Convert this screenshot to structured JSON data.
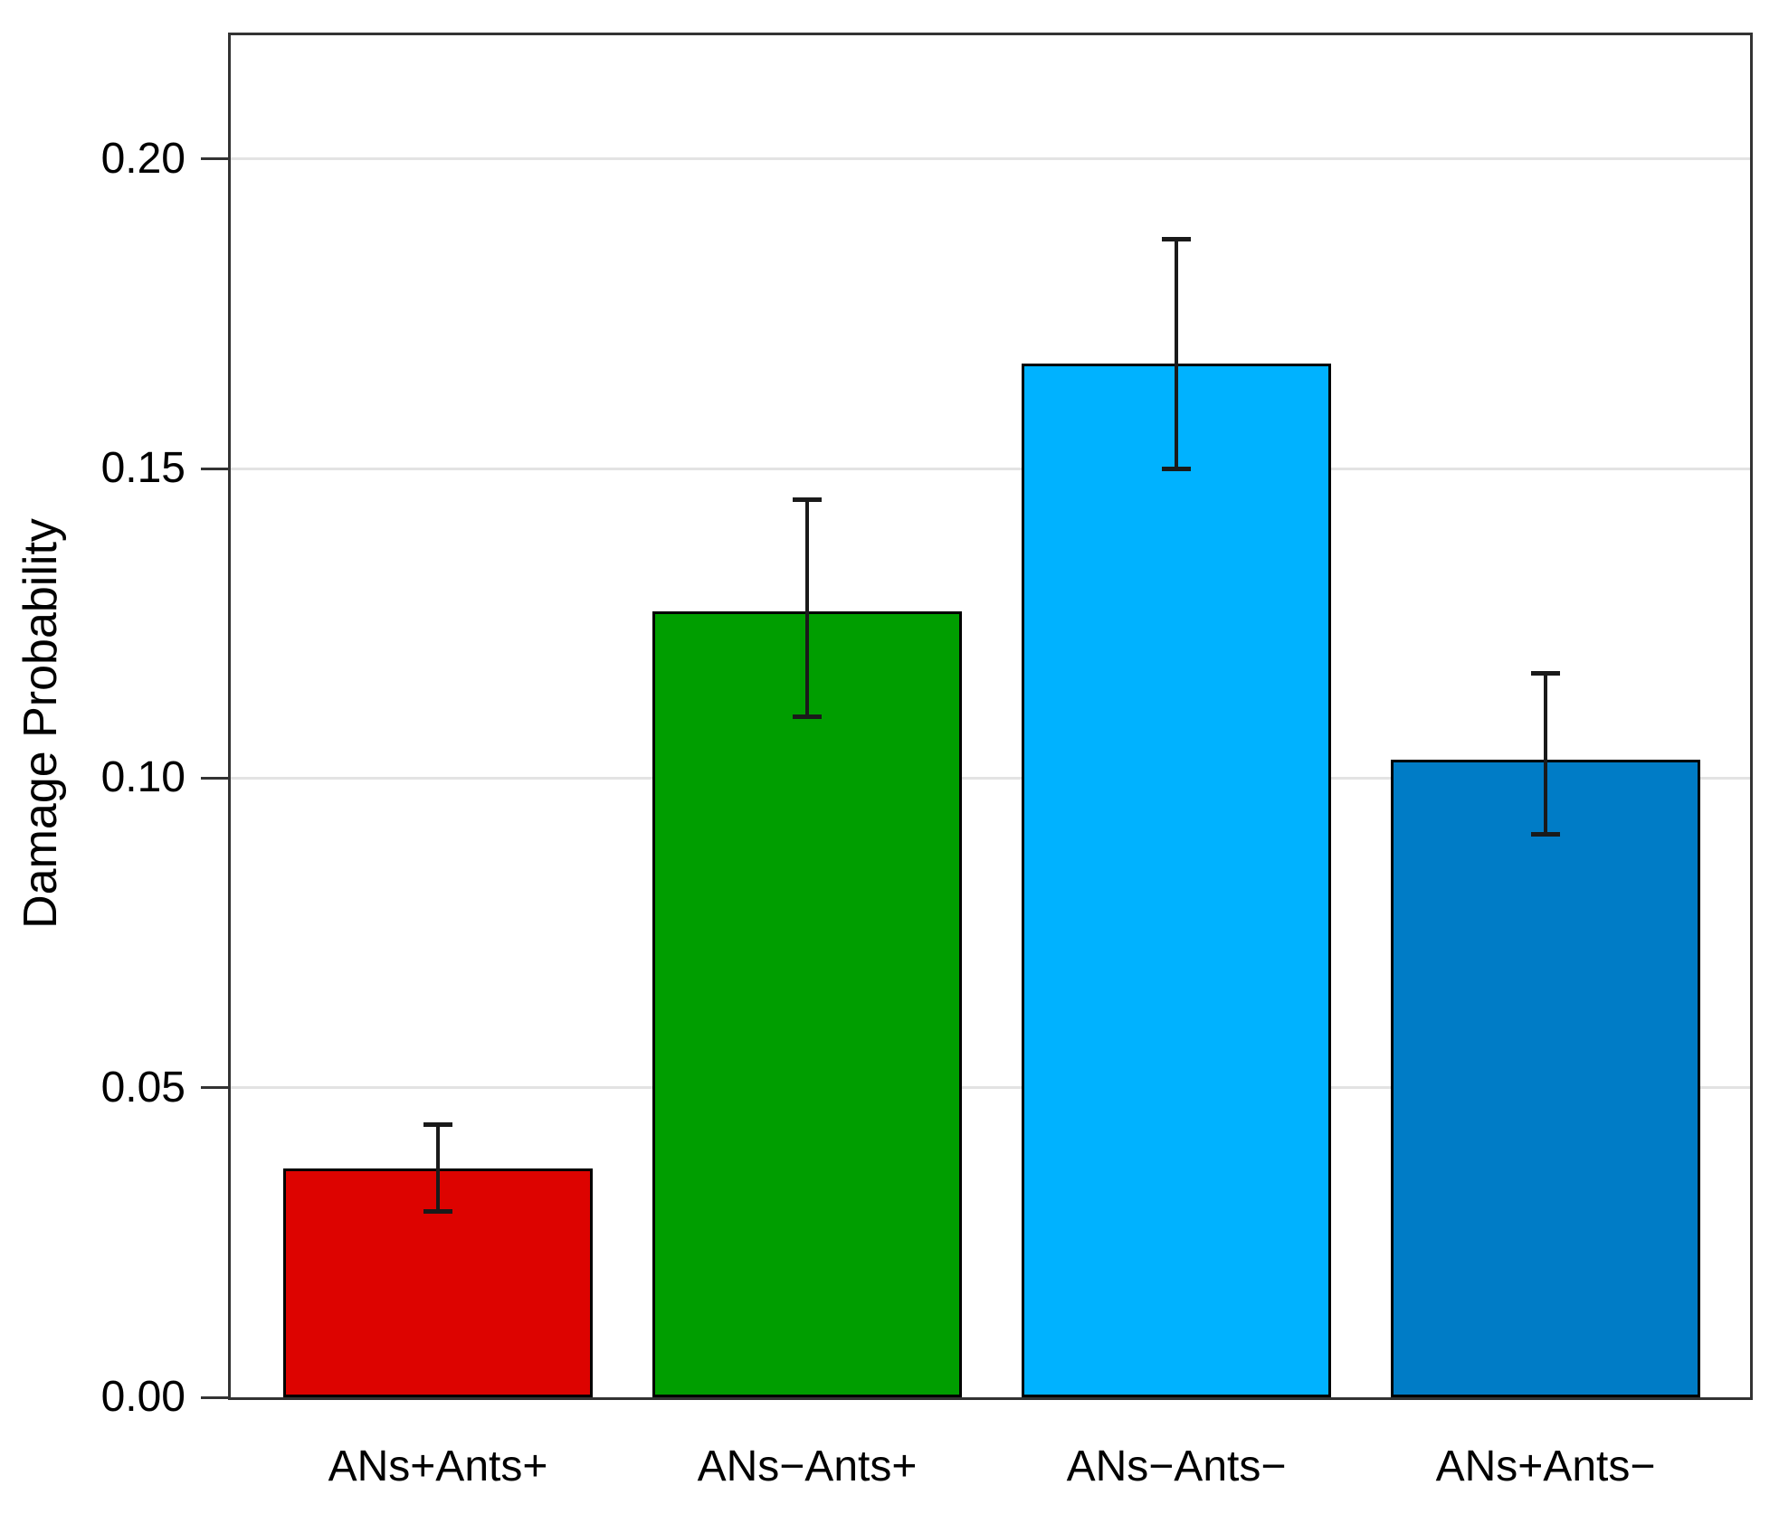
{
  "chart_data": {
    "type": "bar",
    "title": "",
    "xlabel": "",
    "ylabel": "Damage Probability",
    "ylim": [
      0,
      0.22
    ],
    "grid": true,
    "legend": "none",
    "ytick_labels": [
      "0.00",
      "0.05",
      "0.10",
      "0.15",
      "0.20"
    ],
    "ytick_values": [
      0,
      0.05,
      0.1,
      0.15,
      0.2
    ],
    "categories": [
      "ANs+Ants+",
      "ANs−Ants+",
      "ANs−Ants−",
      "ANs+Ants−"
    ],
    "values": [
      0.037,
      0.127,
      0.167,
      0.103
    ],
    "error_low": [
      0.03,
      0.11,
      0.15,
      0.091
    ],
    "error_high": [
      0.044,
      0.145,
      0.187,
      0.117
    ],
    "bar_colors": [
      "#DD0300",
      "#009E00",
      "#00B2FF",
      "#007CC6"
    ],
    "bar_border_color": "#000000",
    "gridline_color": "#e3e3e3",
    "axis_color": "#333333"
  }
}
